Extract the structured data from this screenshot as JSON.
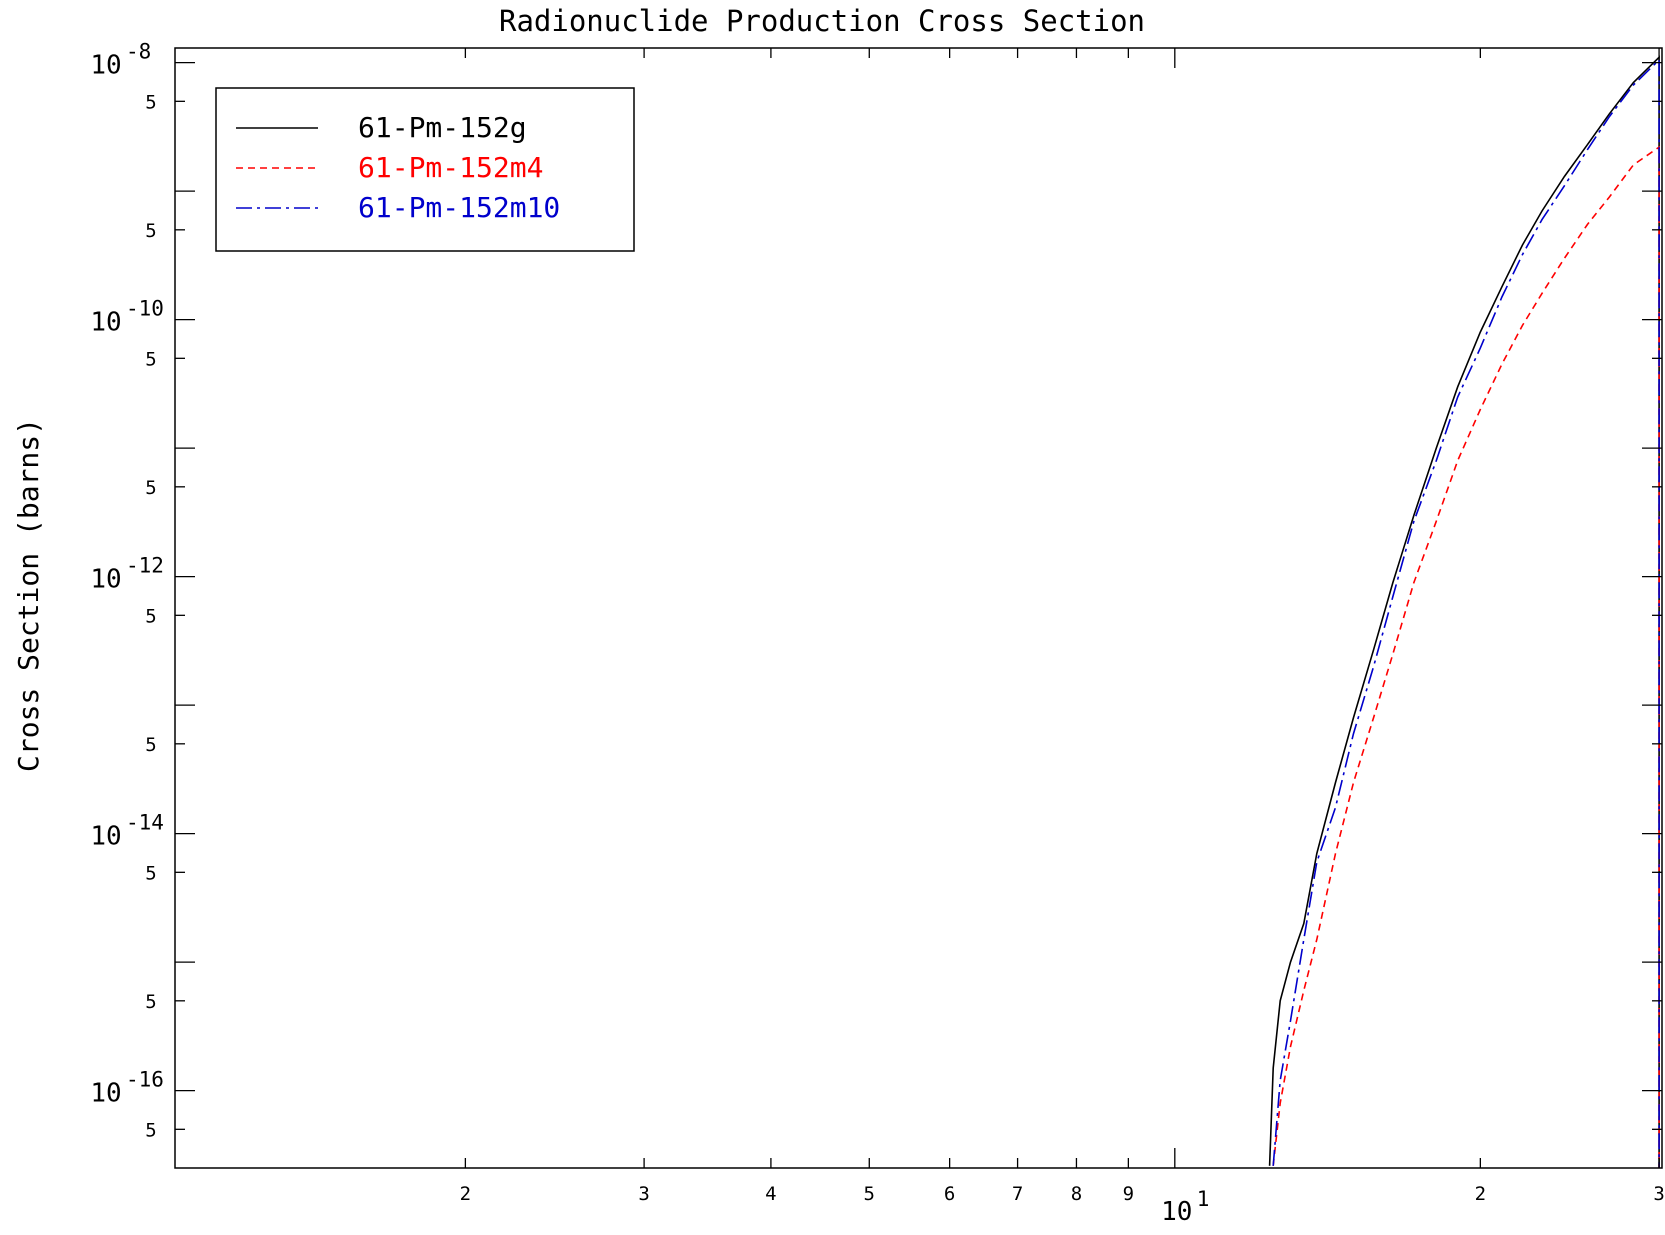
{
  "chart_data": {
    "type": "line",
    "title": "Radionuclide Production Cross Section",
    "xlabel": "",
    "ylabel": "Cross Section (barns)",
    "x_scale": "log",
    "y_scale": "log",
    "xlim": [
      1.035,
      30.2
    ],
    "ylim": [
      2.5e-17,
      1.3e-08
    ],
    "grid": false,
    "legend_position": "top-left",
    "x_ticks": {
      "major": [
        {
          "value": 10,
          "base": "10",
          "exp": "1"
        }
      ],
      "minor": [
        {
          "value": 2,
          "label": "2"
        },
        {
          "value": 3,
          "label": "3"
        },
        {
          "value": 4,
          "label": "4"
        },
        {
          "value": 5,
          "label": "5"
        },
        {
          "value": 6,
          "label": "6"
        },
        {
          "value": 7,
          "label": "7"
        },
        {
          "value": 8,
          "label": "8"
        },
        {
          "value": 9,
          "label": "9"
        },
        {
          "value": 20,
          "label": "2"
        },
        {
          "value": 30,
          "label": "3"
        }
      ]
    },
    "y_ticks": {
      "major": [
        {
          "value": 1e-08,
          "base": "10",
          "exp": "-8"
        },
        {
          "value": 1e-10,
          "base": "10",
          "exp": "-10"
        },
        {
          "value": 1e-12,
          "base": "10",
          "exp": "-12"
        },
        {
          "value": 1e-14,
          "base": "10",
          "exp": "-14"
        },
        {
          "value": 1e-16,
          "base": "10",
          "exp": "-16"
        }
      ],
      "unlabeled": [
        1e-09,
        1e-11,
        1e-13,
        1e-15
      ],
      "minor_label": "5",
      "minor": [
        5e-09,
        5e-10,
        5e-11,
        5e-12,
        5e-13,
        5e-14,
        5e-15,
        5e-16,
        5e-17
      ]
    },
    "series": [
      {
        "name": "61-Pm-152g",
        "color": "#000000",
        "dash": "solid",
        "x": [
          12.4,
          12.5,
          12.7,
          13.0,
          13.4,
          13.8,
          14.4,
          15.0,
          15.7,
          16.4,
          17.2,
          18.1,
          19.0,
          20.0,
          21.0,
          22.0,
          23.0,
          24.2,
          25.5,
          26.8,
          28.3,
          30.0
        ],
        "y": [
          2.6e-17,
          1.5e-16,
          5e-16,
          1e-15,
          2e-15,
          7e-15,
          2.5e-14,
          8e-14,
          2.7e-13,
          9e-13,
          3e-12,
          1e-11,
          3e-11,
          8e-11,
          1.8e-10,
          3.8e-10,
          7e-10,
          1.3e-09,
          2.3e-09,
          4e-09,
          7e-09,
          1.1e-08
        ]
      },
      {
        "name": "61-Pm-152m4",
        "color": "#ff0000",
        "dash": "dashed",
        "x": [
          12.5,
          12.7,
          13.0,
          13.4,
          13.8,
          14.4,
          15.0,
          15.7,
          16.4,
          17.2,
          18.1,
          19.0,
          20.0,
          21.0,
          22.0,
          23.0,
          24.2,
          25.5,
          26.8,
          28.3,
          30.0
        ],
        "y": [
          2.6e-17,
          8e-17,
          2.2e-16,
          6e-16,
          1.5e-15,
          7e-15,
          2.5e-14,
          8e-14,
          2.5e-13,
          9e-13,
          2.7e-12,
          8e-12,
          2e-11,
          4.5e-11,
          9e-11,
          1.6e-10,
          3e-10,
          5.5e-10,
          9e-10,
          1.6e-09,
          2.2e-09
        ]
      },
      {
        "name": "61-Pm-152m10",
        "color": "#0000cc",
        "dash": "dashdot",
        "x": [
          12.5,
          12.7,
          13.0,
          13.4,
          13.8,
          14.4,
          15.0,
          15.7,
          16.4,
          17.2,
          18.1,
          19.0,
          20.0,
          21.0,
          22.0,
          23.0,
          24.2,
          25.5,
          26.8,
          28.3,
          30.0
        ],
        "y": [
          2.6e-17,
          1.2e-16,
          3.5e-16,
          1.5e-15,
          6e-15,
          1.6e-14,
          6e-14,
          2e-13,
          7e-13,
          2.7e-12,
          8e-12,
          2.5e-11,
          6e-11,
          1.5e-10,
          3.2e-10,
          6e-10,
          1.1e-09,
          2.1e-09,
          3.8e-09,
          6.7e-09,
          1.05e-08
        ]
      }
    ]
  }
}
